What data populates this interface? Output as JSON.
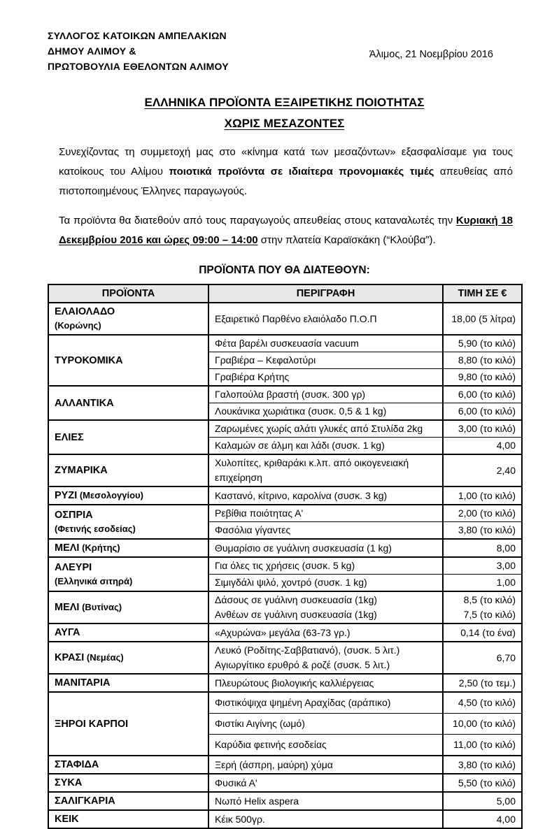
{
  "page": {
    "org_lines": [
      "ΣΥΛΛΟΓΟΣ ΚΑΤΟΙΚΩΝ ΑΜΠΕΛΑΚΙΩΝ",
      "ΔΗΜΟΥ ΑΛΙΜΟΥ &",
      "ΠΡΩΤΟΒΟΥΛΙΑ ΕΘΕΛΟΝΤΩΝ ΑΛΙΜΟΥ"
    ],
    "date": "Άλιμος, 21 Νοεμβρίου 2016",
    "title_line1": "ΕΛΛΗΝΙΚΑ ΠΡΟΪΟΝΤΑ ΕΞΑΙΡΕΤΙΚΗΣ ΠΟΙΟΤΗΤΑΣ",
    "title_line2": "ΧΩΡΙΣ ΜΕΣΑΖΟΝΤΕΣ",
    "para1": {
      "start": "Συνεχίζοντας τη συμμετοχή μας στο «κίνημα κατά των μεσαζόντων» εξασφαλίσαμε για τους κατοίκους του Αλίμου ",
      "bold": "ποιοτικά προϊόντα σε ιδιαίτερα προνομιακές τιμές",
      "end": " απευθείας από πιστοποιημένους Έλληνες παραγωγούς."
    },
    "para2": {
      "start": "Τα προϊόντα θα διατεθούν από τους παραγωγούς απευθείας στους καταναλωτές την ",
      "bold_underline": "Κυριακή 18 Δεκεμβρίου 2016 και ώρες 09:00 – 14:00",
      "end": " στην πλατεία Καραϊσκάκη (“Κλούβα”)."
    },
    "section_title": "ΠΡΟΪΟΝΤΑ ΠΟΥ ΘΑ ΔΙΑΤΕΘΟΥΝ:"
  },
  "table": {
    "headers": [
      "ΠΡΟΪΟΝΤΑ",
      "ΠΕΡΙΓΡΑΦΗ",
      "ΤΙΜΗ ΣΕ €"
    ],
    "groups": [
      {
        "name": "ΕΛΑΙΟΛΑΔΟ",
        "sub": "(Κορώνης)",
        "sub_position": "below",
        "rows": [
          {
            "desc": "Εξαιρετικό Παρθένο ελαιόλαδο Π.Ο.Π",
            "price": "18,00 (5 λίτρα)",
            "tall": true
          }
        ]
      },
      {
        "name": "ΤΥΡΟΚΟΜΙΚΑ",
        "sub": null,
        "sub_position": null,
        "rows": [
          {
            "desc": "Φέτα βαρέλι συσκευασία vacuum",
            "price": "5,90 (το κιλό)"
          },
          {
            "desc": "Γραβιέρα – Κεφαλοτύρι",
            "price": "8,80 (το κιλό)"
          },
          {
            "desc": "Γραβιέρα Κρήτης",
            "price": "9,80 (το κιλό)"
          }
        ]
      },
      {
        "name": "ΑΛΛΑΝΤΙΚΑ",
        "sub": null,
        "sub_position": null,
        "rows": [
          {
            "desc": "Γαλοπούλα βραστή (συσκ. 300 γρ)",
            "price": "6,00 (το κιλό)"
          },
          {
            "desc": "Λουκάνικα χωριάτικα (συσκ. 0,5 & 1 kg)",
            "price": "6,00 (το κιλό)"
          }
        ]
      },
      {
        "name": "ΕΛΙΕΣ",
        "sub": null,
        "sub_position": null,
        "rows": [
          {
            "desc": "Ζαρωμένες χωρίς αλάτι γλυκές από Στυλίδα 2kg",
            "price": "3,00 (το κιλό)"
          },
          {
            "desc": "Καλαμών σε άλμη και λάδι (συσκ. 1 kg)",
            "price": "4,00"
          }
        ]
      },
      {
        "name": "ΖΥΜΑΡΙΚΑ",
        "sub": null,
        "sub_position": null,
        "rows": [
          {
            "desc": "Χυλοπίτες, κριθαράκι κ.λπ. από οικογενειακή επιχείρηση",
            "price": "2,40"
          }
        ]
      },
      {
        "name": "ΡΥΖΙ",
        "sub": "(Μεσολογγίου)",
        "sub_position": "inline",
        "rows": [
          {
            "desc": "Καστανό, κίτρινο, καρολίνα (συσκ. 3 kg)",
            "price": "1,00 (το κιλό)"
          }
        ]
      },
      {
        "name": "ΟΣΠΡΙΑ",
        "sub": "(Φετινής εσοδείας)",
        "sub_position": "below",
        "rows": [
          {
            "desc": "Ρεβίθια ποιότητας Α'",
            "price": "2,00 (το κιλό)"
          },
          {
            "desc": "Φασόλια γίγαντες",
            "price": "3,80 (το κιλό)"
          }
        ]
      },
      {
        "name": "ΜΕΛΙ",
        "sub": "(Κρήτης)",
        "sub_position": "inline",
        "rows": [
          {
            "desc": "Θυμαρίσιο σε γυάλινη συσκευασία (1 kg)",
            "price": "8,00"
          }
        ]
      },
      {
        "name": "ΑΛΕΥΡΙ",
        "sub": "(Ελληνικά σιτηρά)",
        "sub_position": "below",
        "rows": [
          {
            "desc": "Για όλες τις χρήσεις (συσκ. 5 kg)",
            "price": "3,00"
          },
          {
            "desc": "Σιμιγδάλι ψιλό, χοντρό (συσκ. 1 kg)",
            "price": "1,00"
          }
        ]
      },
      {
        "name": "ΜΕΛΙ",
        "sub": "(Βυτίνας)",
        "sub_position": "inline",
        "rows": [
          {
            "desc": "Δάσους σε γυάλινη συσκευασία (1kg)\nΑνθέων σε γυάλινη συσκευασία (1kg)",
            "price": "8,5 (το κιλό)\n7,5 (το κιλό)"
          }
        ]
      },
      {
        "name": "ΑΥΓΑ",
        "sub": null,
        "sub_position": null,
        "rows": [
          {
            "desc": "«Αχυρώνα» μεγάλα (63-73 γρ.)",
            "price": "0,14 (το ένα)"
          }
        ]
      },
      {
        "name": "ΚΡΑΣΙ",
        "sub": "(Νεμέας)",
        "sub_position": "inline",
        "rows": [
          {
            "desc": "Λευκό (Ροδίτης-Σαββατιανό), (συσκ. 5 λιτ.)\nΑγιωργίτικο ερυθρό & ροζέ (συσκ. 5 λιτ.)",
            "price": "6,70"
          }
        ]
      },
      {
        "name": "ΜΑΝΙΤΑΡΙΑ",
        "sub": null,
        "sub_position": null,
        "rows": [
          {
            "desc": "Πλευρώτους βιολογικής καλλιέργειας",
            "price": "2,50 (το τεμ.)"
          }
        ]
      },
      {
        "name": "ΞΗΡΟΙ ΚΑΡΠΟΙ",
        "sub": null,
        "sub_position": null,
        "rows": [
          {
            "desc": "Φιστικόψιχα ψημένη Αραχίδας (αράπικο)",
            "price": "4,50 (το κιλό)",
            "tall": true
          },
          {
            "desc": "Φιστίκι Αιγίνης (ωμό)",
            "price": "10,00 (το κιλό)",
            "tall": true
          },
          {
            "desc": "Καρύδια φετινής εσοδείας",
            "price": "11,00 (το κιλό)",
            "tall": true
          }
        ]
      },
      {
        "name": "ΣΤΑΦΙΔΑ",
        "sub": null,
        "sub_position": null,
        "rows": [
          {
            "desc": "Ξερή (άσπρη, μαύρη) χύμα",
            "price": "3,80 (το κιλό)"
          }
        ]
      },
      {
        "name": "ΣΥΚΑ",
        "sub": null,
        "sub_position": null,
        "rows": [
          {
            "desc": "Φυσικά Α'",
            "price": "5,50 (το κιλό)"
          }
        ]
      },
      {
        "name": "ΣΑΛΙΓΚΑΡΙΑ",
        "sub": null,
        "sub_position": null,
        "rows": [
          {
            "desc": "Νωπό Helix aspera",
            "price": "5,00"
          }
        ]
      },
      {
        "name": "ΚΕΙΚ",
        "sub": null,
        "sub_position": null,
        "rows": [
          {
            "desc": "Κέικ 500γρ.",
            "price": "4,00"
          }
        ]
      }
    ]
  },
  "colors": {
    "header_bg": "#e8e8e8",
    "border": "#000000",
    "text": "#000000"
  }
}
